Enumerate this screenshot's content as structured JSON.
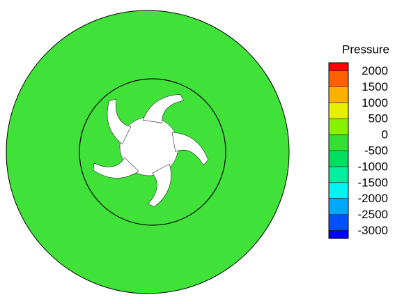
{
  "chart_data": {
    "type": "contour",
    "legend_title": "Pressure",
    "field_color": "#40e23a",
    "ylim": [
      -3250,
      2250
    ],
    "yticks": [
      2000,
      1500,
      1000,
      500,
      0,
      -500,
      -1000,
      -1500,
      -2000,
      -2500,
      -3000
    ],
    "band_edges": [
      -3250,
      -3000,
      -2500,
      -2000,
      -1500,
      -1000,
      -500,
      0,
      500,
      1000,
      1500,
      2000,
      2250
    ],
    "band_colors": [
      "#0000ff",
      "#0050ff",
      "#00a8ff",
      "#00f4f0",
      "#00f0a0",
      "#00e060",
      "#34e034",
      "#88f000",
      "#e8f000",
      "#ffb000",
      "#ff6000",
      "#ff0000"
    ]
  }
}
